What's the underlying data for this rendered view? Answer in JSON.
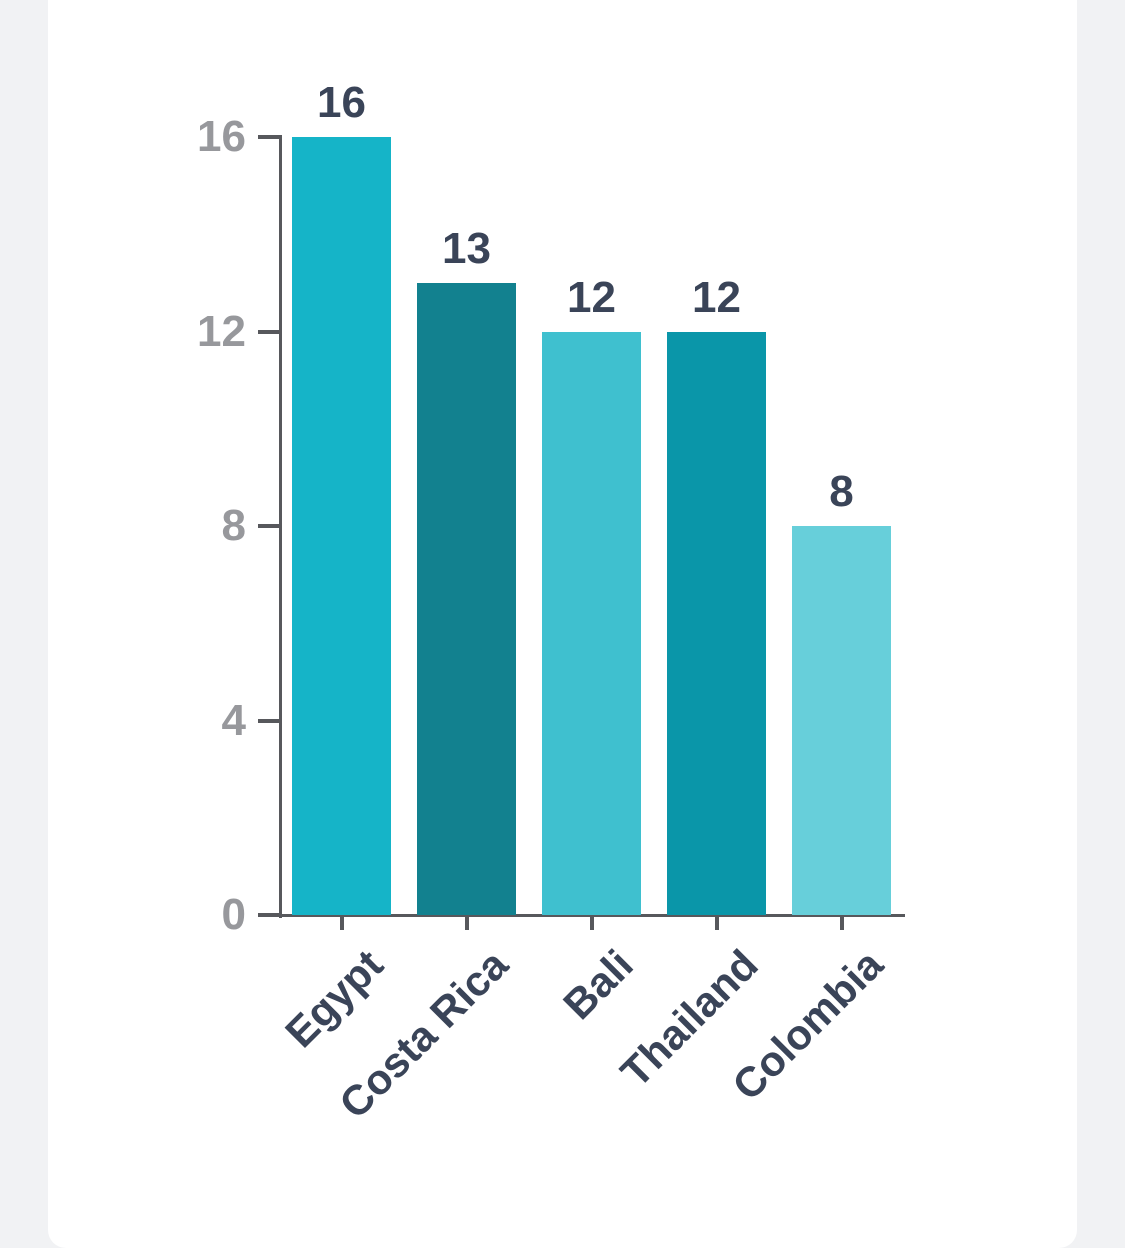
{
  "page": {
    "background_color": "#f1f2f4",
    "card_color": "#ffffff"
  },
  "chart_data": {
    "type": "bar",
    "categories": [
      "Egypt",
      "Costa Rica",
      "Bali",
      "Thailand",
      "Colombia"
    ],
    "values": [
      16,
      13,
      12,
      12,
      8
    ],
    "value_labels": [
      "16",
      "13",
      "12",
      "12",
      "8"
    ],
    "bar_colors": [
      "#15b4c8",
      "#12818f",
      "#3fc0cf",
      "#0a96a9",
      "#67cfda"
    ],
    "y_ticks": [
      0,
      4,
      8,
      12,
      16
    ],
    "y_tick_labels": [
      "0",
      "4",
      "8",
      "12",
      "16"
    ],
    "ylim": [
      0,
      16
    ],
    "title": "",
    "xlabel": "",
    "ylabel": "",
    "grid": false,
    "legend": false,
    "x_label_rotation_deg": -45,
    "axis_color": "#57585c",
    "y_tick_label_color": "#97989c",
    "data_label_color": "#3a4458",
    "category_label_color": "#3a4458"
  }
}
